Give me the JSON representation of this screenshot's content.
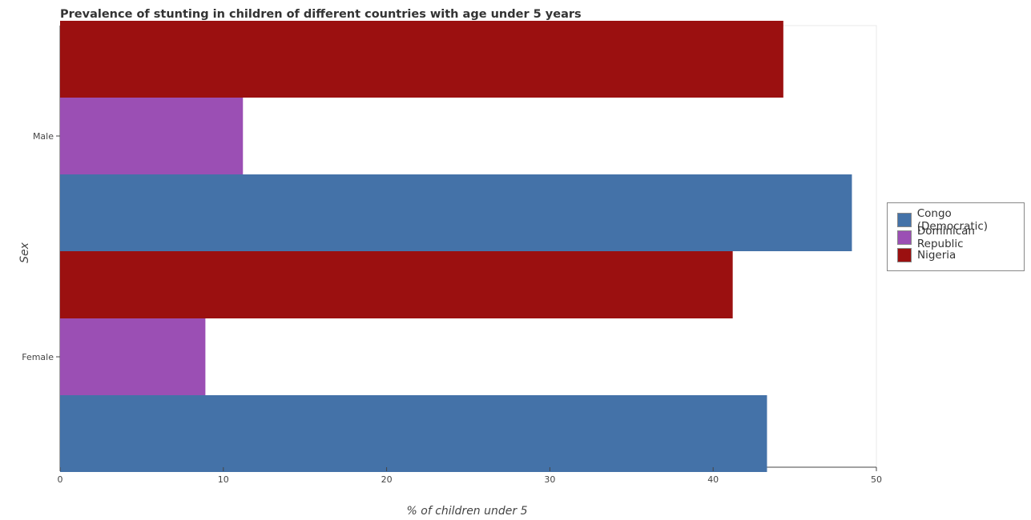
{
  "chart_data": {
    "type": "bar",
    "orientation": "horizontal",
    "title": "Prevalence of stunting in children of different countries with age under 5 years",
    "xlabel": "% of children under 5",
    "ylabel": "Sex",
    "categories": [
      "Female",
      "Male"
    ],
    "series": [
      {
        "name": "Congo (Democratic)",
        "color": "#4472a8",
        "values": [
          43.3,
          48.5
        ]
      },
      {
        "name": "Dominican Republic",
        "color": "#9b4fb4",
        "values": [
          8.9,
          11.2
        ]
      },
      {
        "name": "Nigeria",
        "color": "#9b1010",
        "values": [
          41.2,
          44.3
        ]
      }
    ],
    "xlim": [
      0,
      50
    ],
    "xticks": [
      "0",
      "10",
      "20",
      "30",
      "40",
      "50"
    ],
    "grid": false,
    "legend_position": "right"
  }
}
